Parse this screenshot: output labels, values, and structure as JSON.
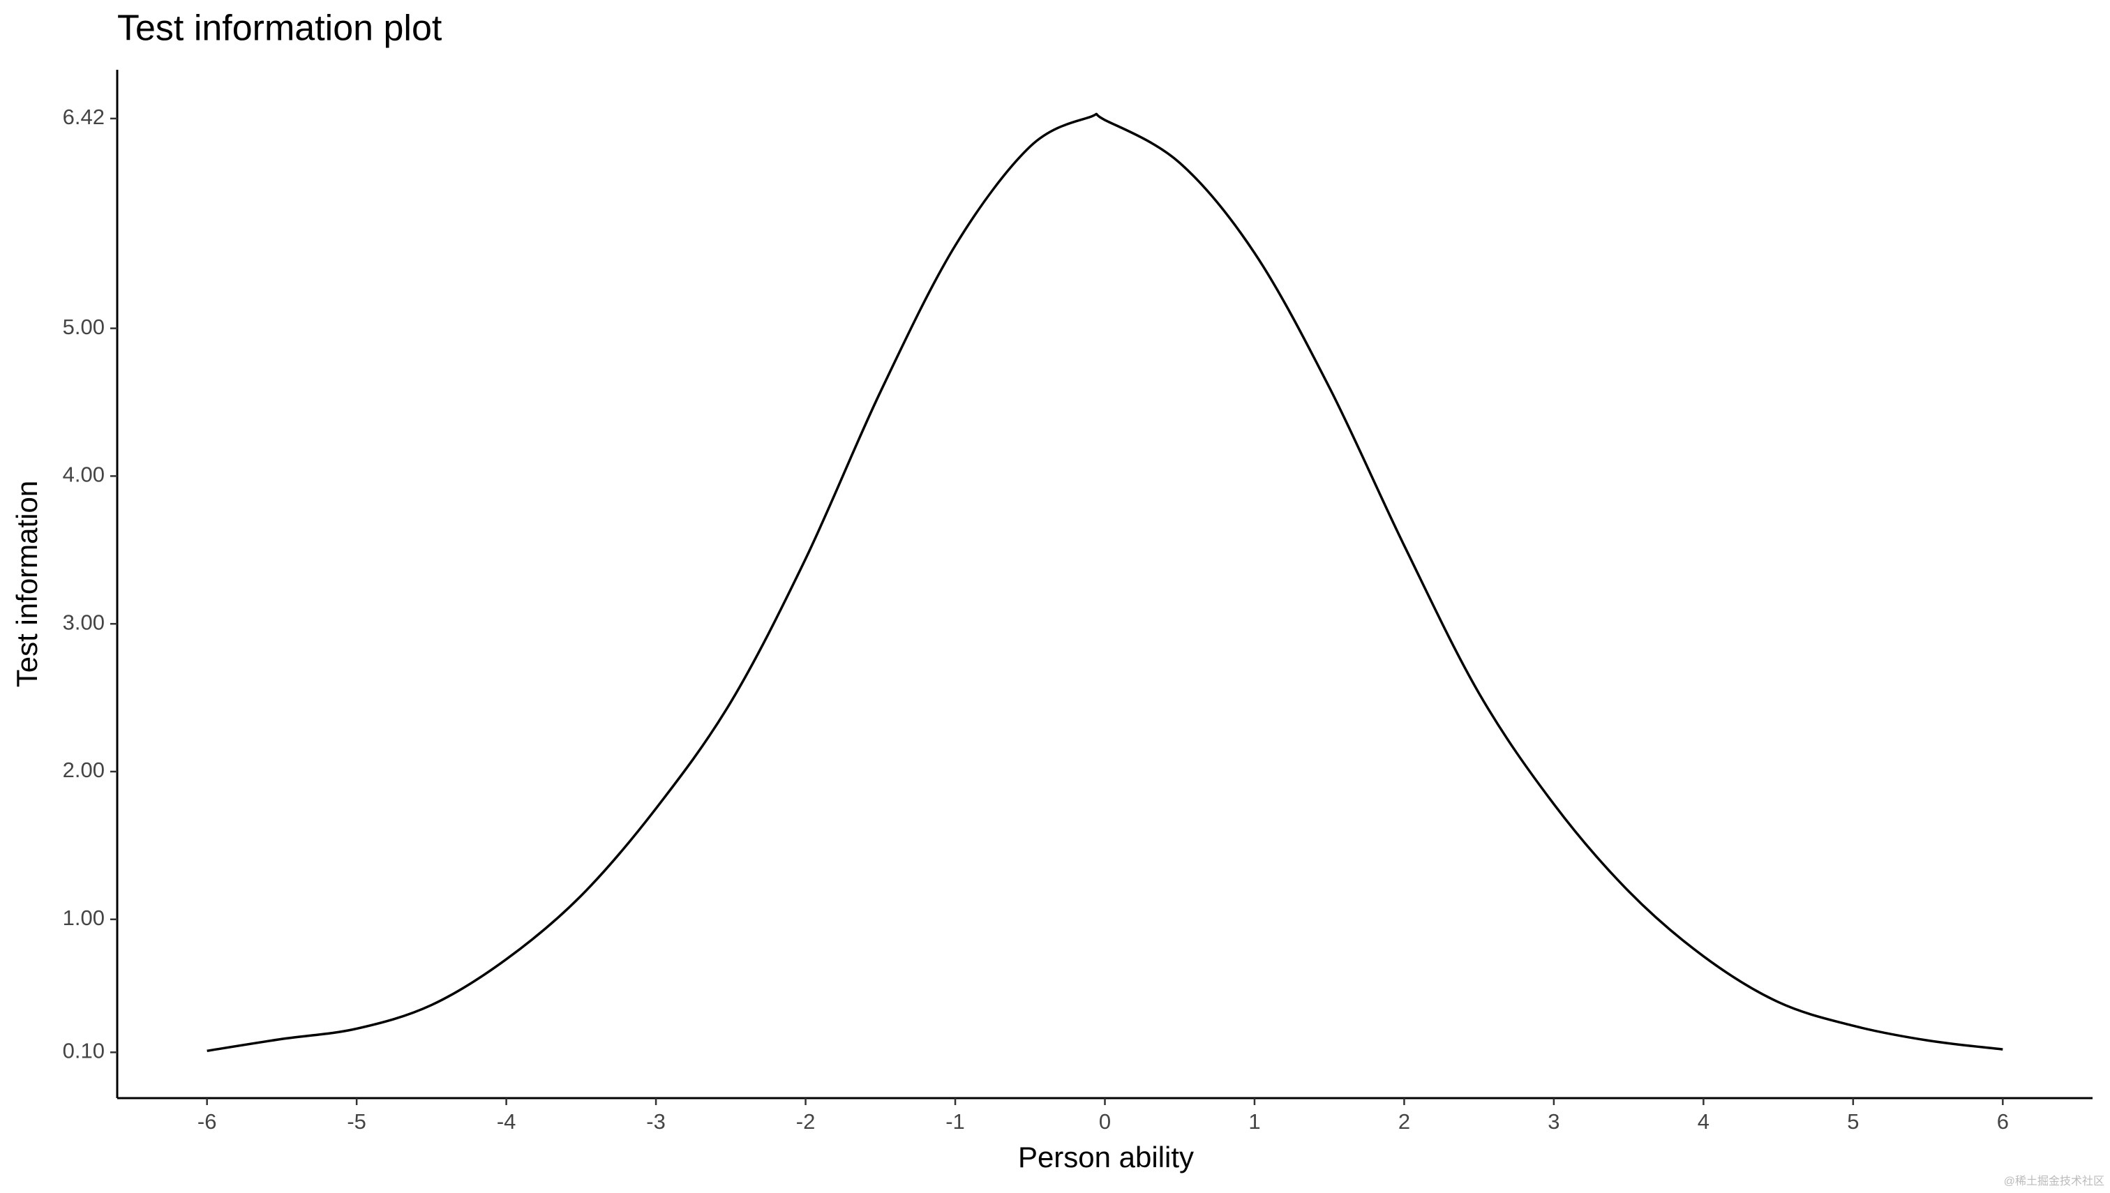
{
  "chart_data": {
    "type": "line",
    "title": "Test information plot",
    "x_label": "Person ability",
    "y_label": "Test information",
    "x": [
      -6,
      -5.5,
      -5,
      -4.5,
      -4,
      -3.5,
      -3,
      -2.5,
      -2,
      -1.5,
      -1,
      -0.5,
      -0.1,
      0,
      0.5,
      1,
      1.5,
      2,
      2.5,
      3,
      3.5,
      4,
      4.5,
      5,
      5.5,
      6
    ],
    "series": [
      {
        "color": "#000000",
        "values": [
          0.11,
          0.19,
          0.26,
          0.42,
          0.73,
          1.16,
          1.75,
          2.47,
          3.44,
          4.57,
          5.56,
          6.23,
          6.43,
          6.41,
          6.12,
          5.51,
          4.6,
          3.53,
          2.53,
          1.78,
          1.19,
          0.75,
          0.44,
          0.28,
          0.18,
          0.12
        ]
      }
    ],
    "xlim": [
      -6.6,
      6.6
    ],
    "xticks": [
      -6,
      -5,
      -4,
      -3,
      -2,
      -1,
      0,
      1,
      2,
      3,
      4,
      5,
      6
    ],
    "ylim": [
      -0.21,
      6.75
    ],
    "yticks": [
      {
        "value": 0.1,
        "label": "0.10"
      },
      {
        "value": 1,
        "label": "1.00"
      },
      {
        "value": 2,
        "label": "2.00"
      },
      {
        "value": 3,
        "label": "3.00"
      },
      {
        "value": 4,
        "label": "4.00"
      },
      {
        "value": 5,
        "label": "5.00"
      },
      6.42
    ],
    "grid": false,
    "watermark": "@稀土掘金技术社区"
  }
}
